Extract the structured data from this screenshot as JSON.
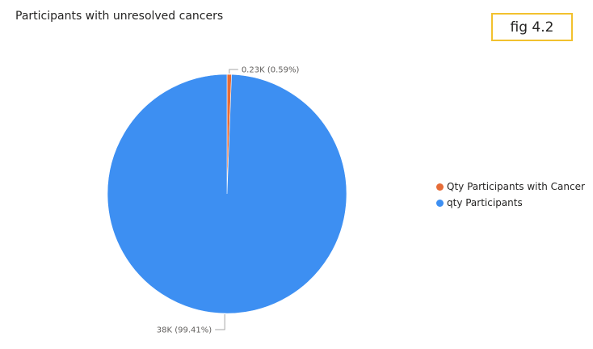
{
  "title": "Participants with unresolved cancers",
  "badge": "fig 4.2",
  "chart_data": {
    "type": "pie",
    "title": "Participants with unresolved cancers",
    "slices": [
      {
        "name": "Qty Participants with Cancer",
        "value": 0.23,
        "percent": 0.59,
        "label": "0.23K (0.59%)",
        "color": "#e66c37"
      },
      {
        "name": "qty Participants",
        "value": 38,
        "percent": 99.41,
        "label": "38K (99.41%)",
        "color": "#3d8ff2"
      }
    ],
    "legend": {
      "position": "right",
      "items": [
        "Qty Participants with Cancer",
        "qty Participants"
      ]
    }
  }
}
